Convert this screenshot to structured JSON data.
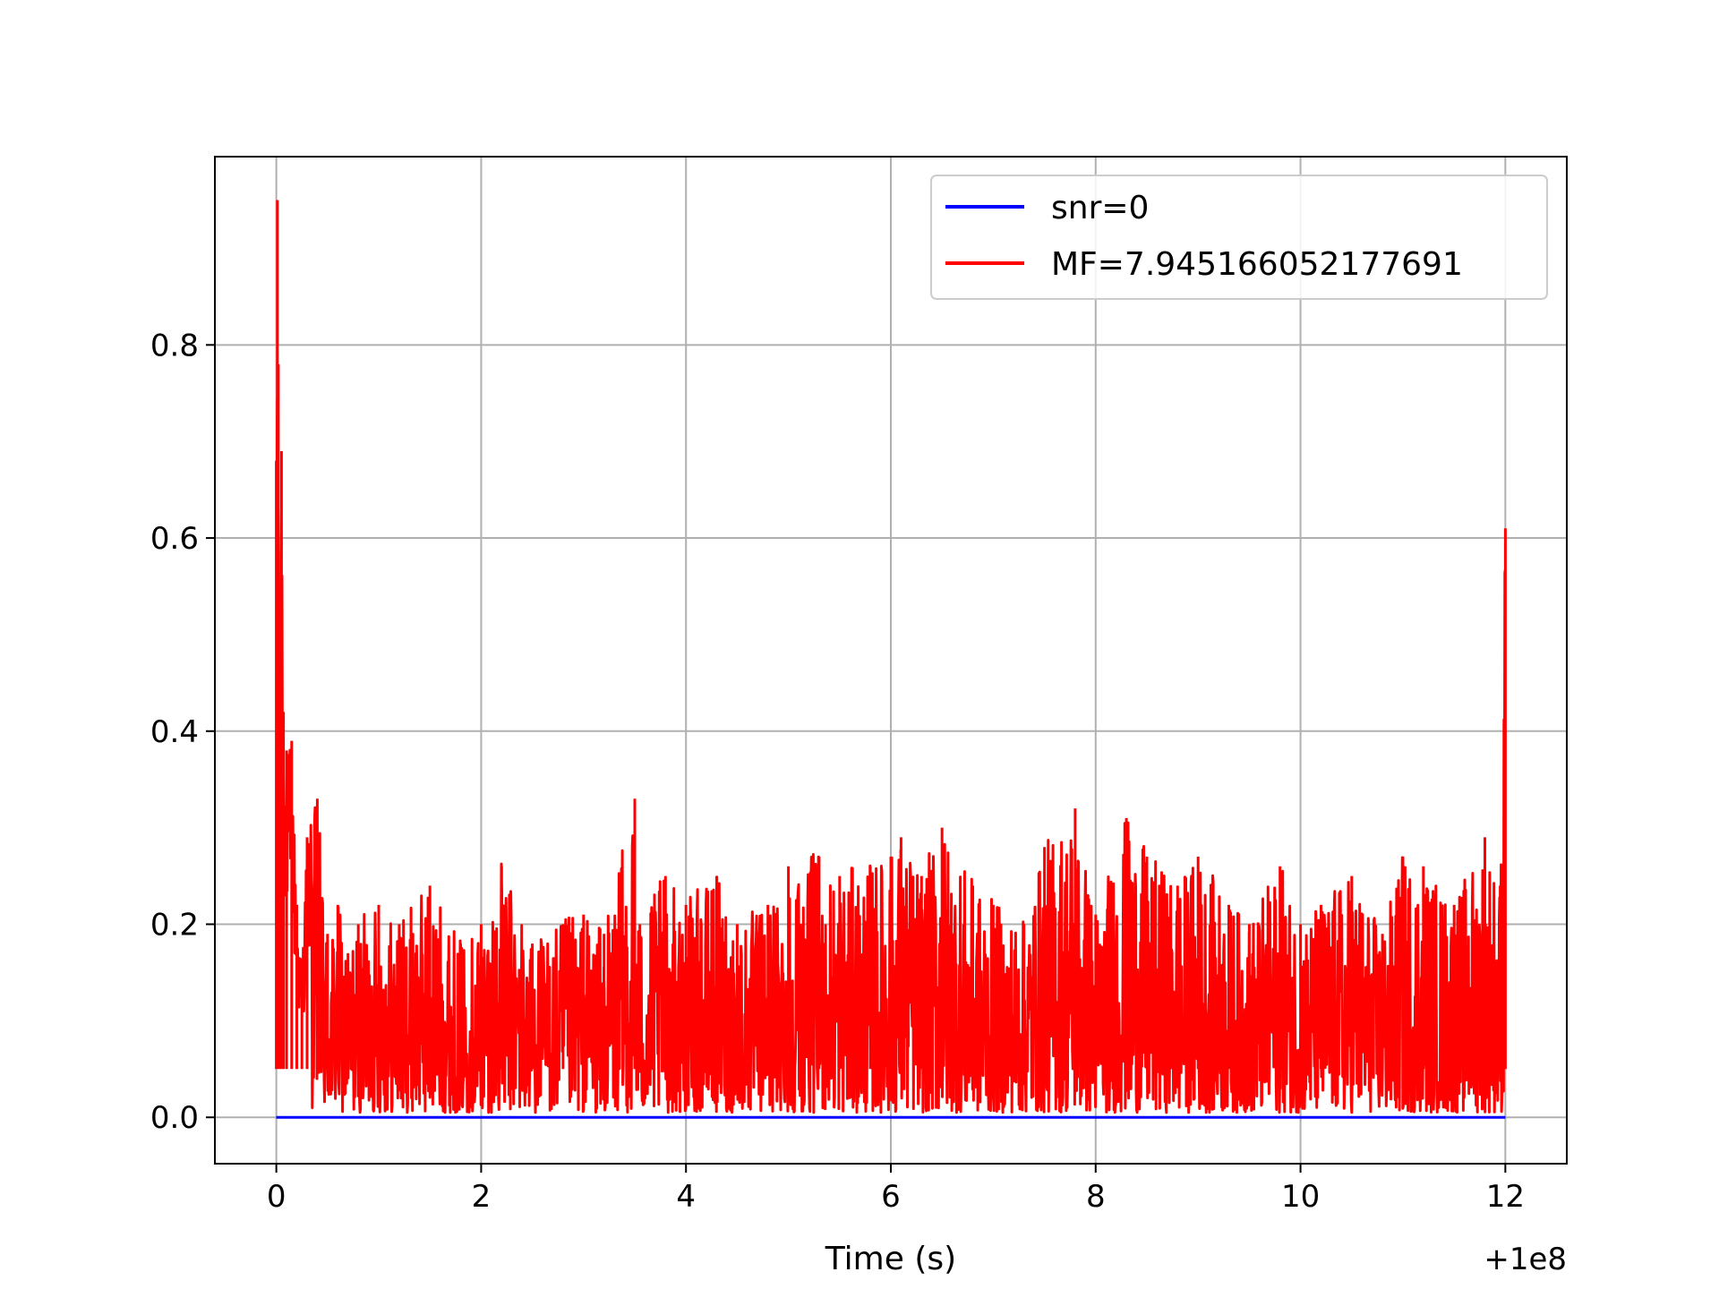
{
  "chart_data": {
    "type": "line",
    "title": "",
    "xlabel": "Time (s)",
    "ylabel": "",
    "x_offset_label": "+1e8",
    "xlim": [
      -0.6,
      12.6
    ],
    "ylim": [
      -0.048,
      0.995
    ],
    "xticks": [
      0,
      2,
      4,
      6,
      8,
      10,
      12
    ],
    "xtick_labels": [
      "0",
      "2",
      "4",
      "6",
      "8",
      "10",
      "12"
    ],
    "yticks": [
      0.0,
      0.2,
      0.4,
      0.6,
      0.8
    ],
    "ytick_labels": [
      "0.0",
      "0.2",
      "0.4",
      "0.6",
      "0.8"
    ],
    "grid": true,
    "legend_position": "top-right",
    "series": [
      {
        "name": "snr=0",
        "color": "#0000ff",
        "x": [
          0,
          12
        ],
        "y": [
          0.0,
          0.0
        ]
      },
      {
        "name": "MF=7.945166052177691",
        "color": "#ff0000",
        "x": [
          0.0,
          0.01,
          0.02,
          0.03,
          0.05,
          0.07,
          0.1,
          0.15,
          0.2,
          0.25,
          0.3,
          0.4,
          0.5,
          0.6,
          0.7,
          0.8,
          1.0,
          1.2,
          1.5,
          1.8,
          2.0,
          2.2,
          2.5,
          2.8,
          3.0,
          3.2,
          3.5,
          3.55,
          3.8,
          4.0,
          4.3,
          4.5,
          4.8,
          5.0,
          5.3,
          5.5,
          5.8,
          6.0,
          6.1,
          6.3,
          6.5,
          6.8,
          7.0,
          7.3,
          7.5,
          7.8,
          8.0,
          8.3,
          8.5,
          8.8,
          9.0,
          9.3,
          9.5,
          9.8,
          10.0,
          10.2,
          10.5,
          10.8,
          11.0,
          11.2,
          11.5,
          11.8,
          11.95,
          12.0
        ],
        "y": [
          0.68,
          0.95,
          0.78,
          0.52,
          0.69,
          0.42,
          0.38,
          0.39,
          0.22,
          0.15,
          0.29,
          0.33,
          0.19,
          0.22,
          0.17,
          0.2,
          0.22,
          0.2,
          0.24,
          0.18,
          0.2,
          0.26,
          0.18,
          0.2,
          0.21,
          0.19,
          0.33,
          0.2,
          0.25,
          0.22,
          0.25,
          0.2,
          0.22,
          0.26,
          0.27,
          0.25,
          0.26,
          0.27,
          0.29,
          0.25,
          0.3,
          0.24,
          0.22,
          0.2,
          0.28,
          0.32,
          0.21,
          0.31,
          0.27,
          0.24,
          0.27,
          0.22,
          0.2,
          0.26,
          0.2,
          0.22,
          0.25,
          0.19,
          0.27,
          0.26,
          0.22,
          0.29,
          0.24,
          0.61
        ]
      }
    ]
  }
}
